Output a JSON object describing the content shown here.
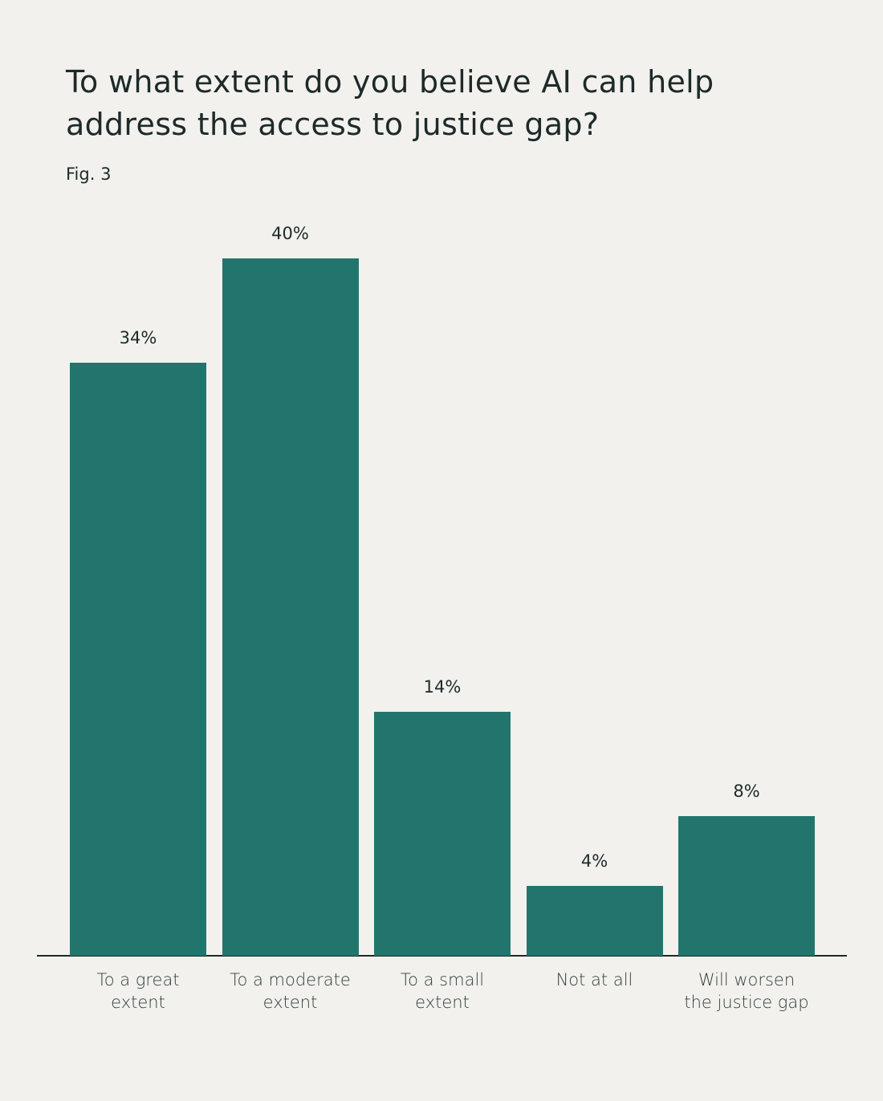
{
  "chart_data": {
    "type": "bar",
    "title": "To what extent do you believe AI can help address the access to justice gap?",
    "subtitle": "Fig. 3",
    "categories": [
      "To a great extent",
      "To a moderate extent",
      "To a small extent",
      "Not at all",
      "Will worsen the justice gap"
    ],
    "values": [
      34,
      40,
      14,
      4,
      8
    ],
    "value_labels": [
      "34%",
      "40%",
      "14%",
      "4%",
      "8%"
    ],
    "color": "#22756d"
  }
}
